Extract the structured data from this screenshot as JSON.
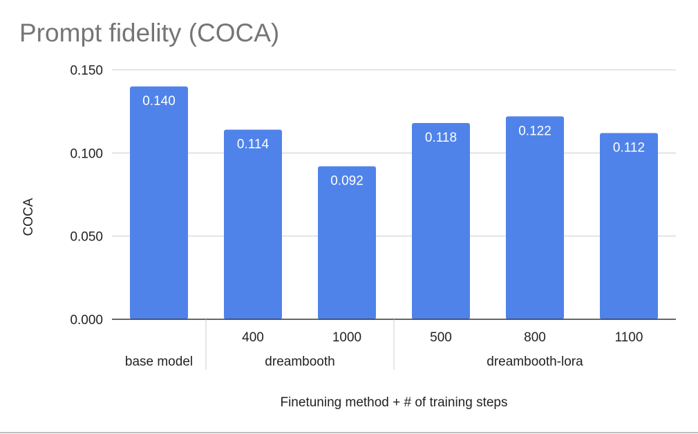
{
  "chart_data": {
    "type": "bar",
    "title": "Prompt fidelity (COCA)",
    "ylabel": "COCA",
    "xlabel": "Finetuning method + # of training steps",
    "ylim": [
      0,
      0.15
    ],
    "yticks": [
      "0.000",
      "0.050",
      "0.100",
      "0.150"
    ],
    "ytick_values": [
      0,
      0.05,
      0.1,
      0.15
    ],
    "bar_color": "#5083EA",
    "grid": true,
    "bars": [
      {
        "group": "base model",
        "step": "",
        "value": 0.14,
        "label": "0.140"
      },
      {
        "group": "dreambooth",
        "step": "400",
        "value": 0.114,
        "label": "0.114"
      },
      {
        "group": "dreambooth",
        "step": "1000",
        "value": 0.092,
        "label": "0.092"
      },
      {
        "group": "dreambooth-lora",
        "step": "500",
        "value": 0.118,
        "label": "0.118"
      },
      {
        "group": "dreambooth-lora",
        "step": "800",
        "value": 0.122,
        "label": "0.122"
      },
      {
        "group": "dreambooth-lora",
        "step": "1100",
        "value": 0.112,
        "label": "0.112"
      }
    ],
    "groups": [
      "base model",
      "dreambooth",
      "dreambooth-lora"
    ]
  }
}
